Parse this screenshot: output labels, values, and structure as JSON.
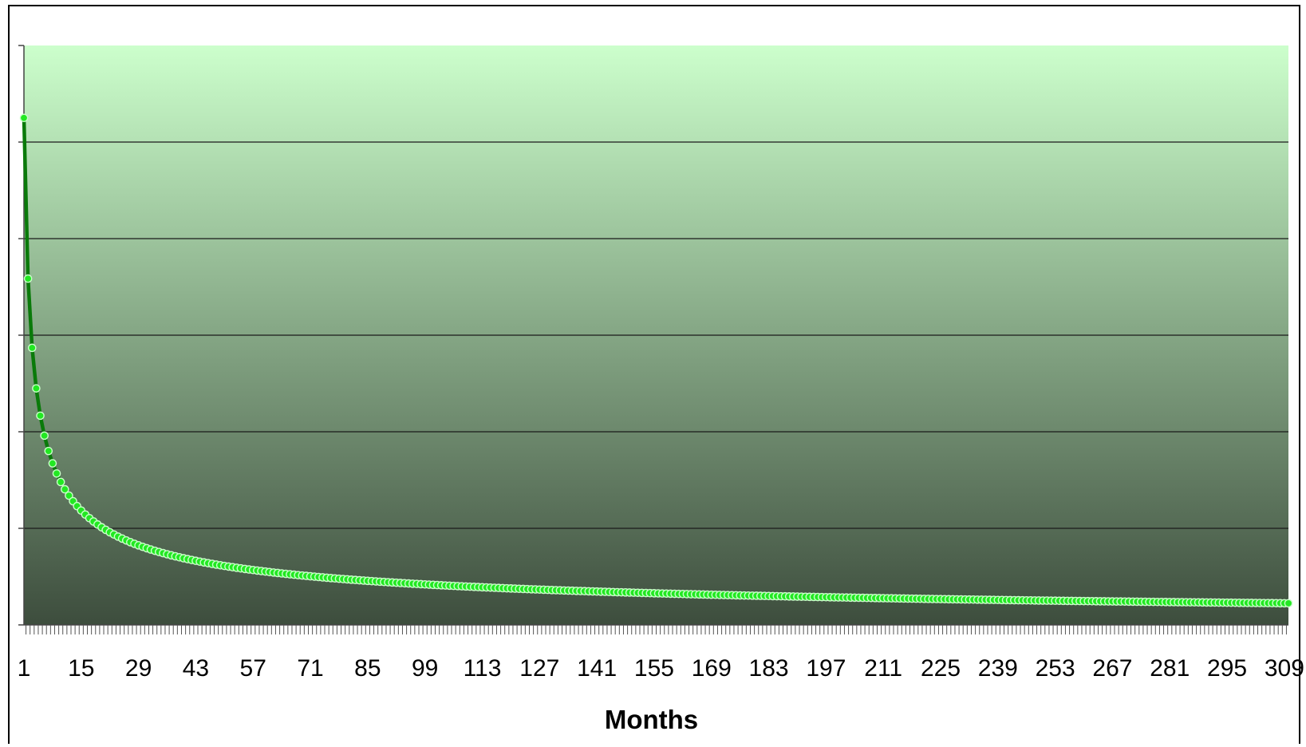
{
  "chart_data": {
    "type": "line",
    "title": "",
    "xlabel": "Months",
    "ylabel": "",
    "x_start": 1,
    "x_end": 310,
    "x_tick_every": 14,
    "xlim": [
      1,
      310
    ],
    "ylim": [
      0,
      6
    ],
    "y_gridlines": [
      1,
      2,
      3,
      4,
      5
    ],
    "y_tick_labels_visible": false,
    "grid": true,
    "legend": "none",
    "curve_model": "y = 5.25 / x^0.55 (values read as fraction of plot height, 6 gridline units)",
    "curve_coefficient": 5.25,
    "curve_exponent": 0.55,
    "colors": {
      "line": "#0a7a0a",
      "marker_fill": "#22e822",
      "marker_edge": "#c8ffc8",
      "plot_bg_top": "#ccffcc",
      "plot_bg_bottom": "#3d4d3d",
      "gridline": "#1a1a1a"
    }
  }
}
